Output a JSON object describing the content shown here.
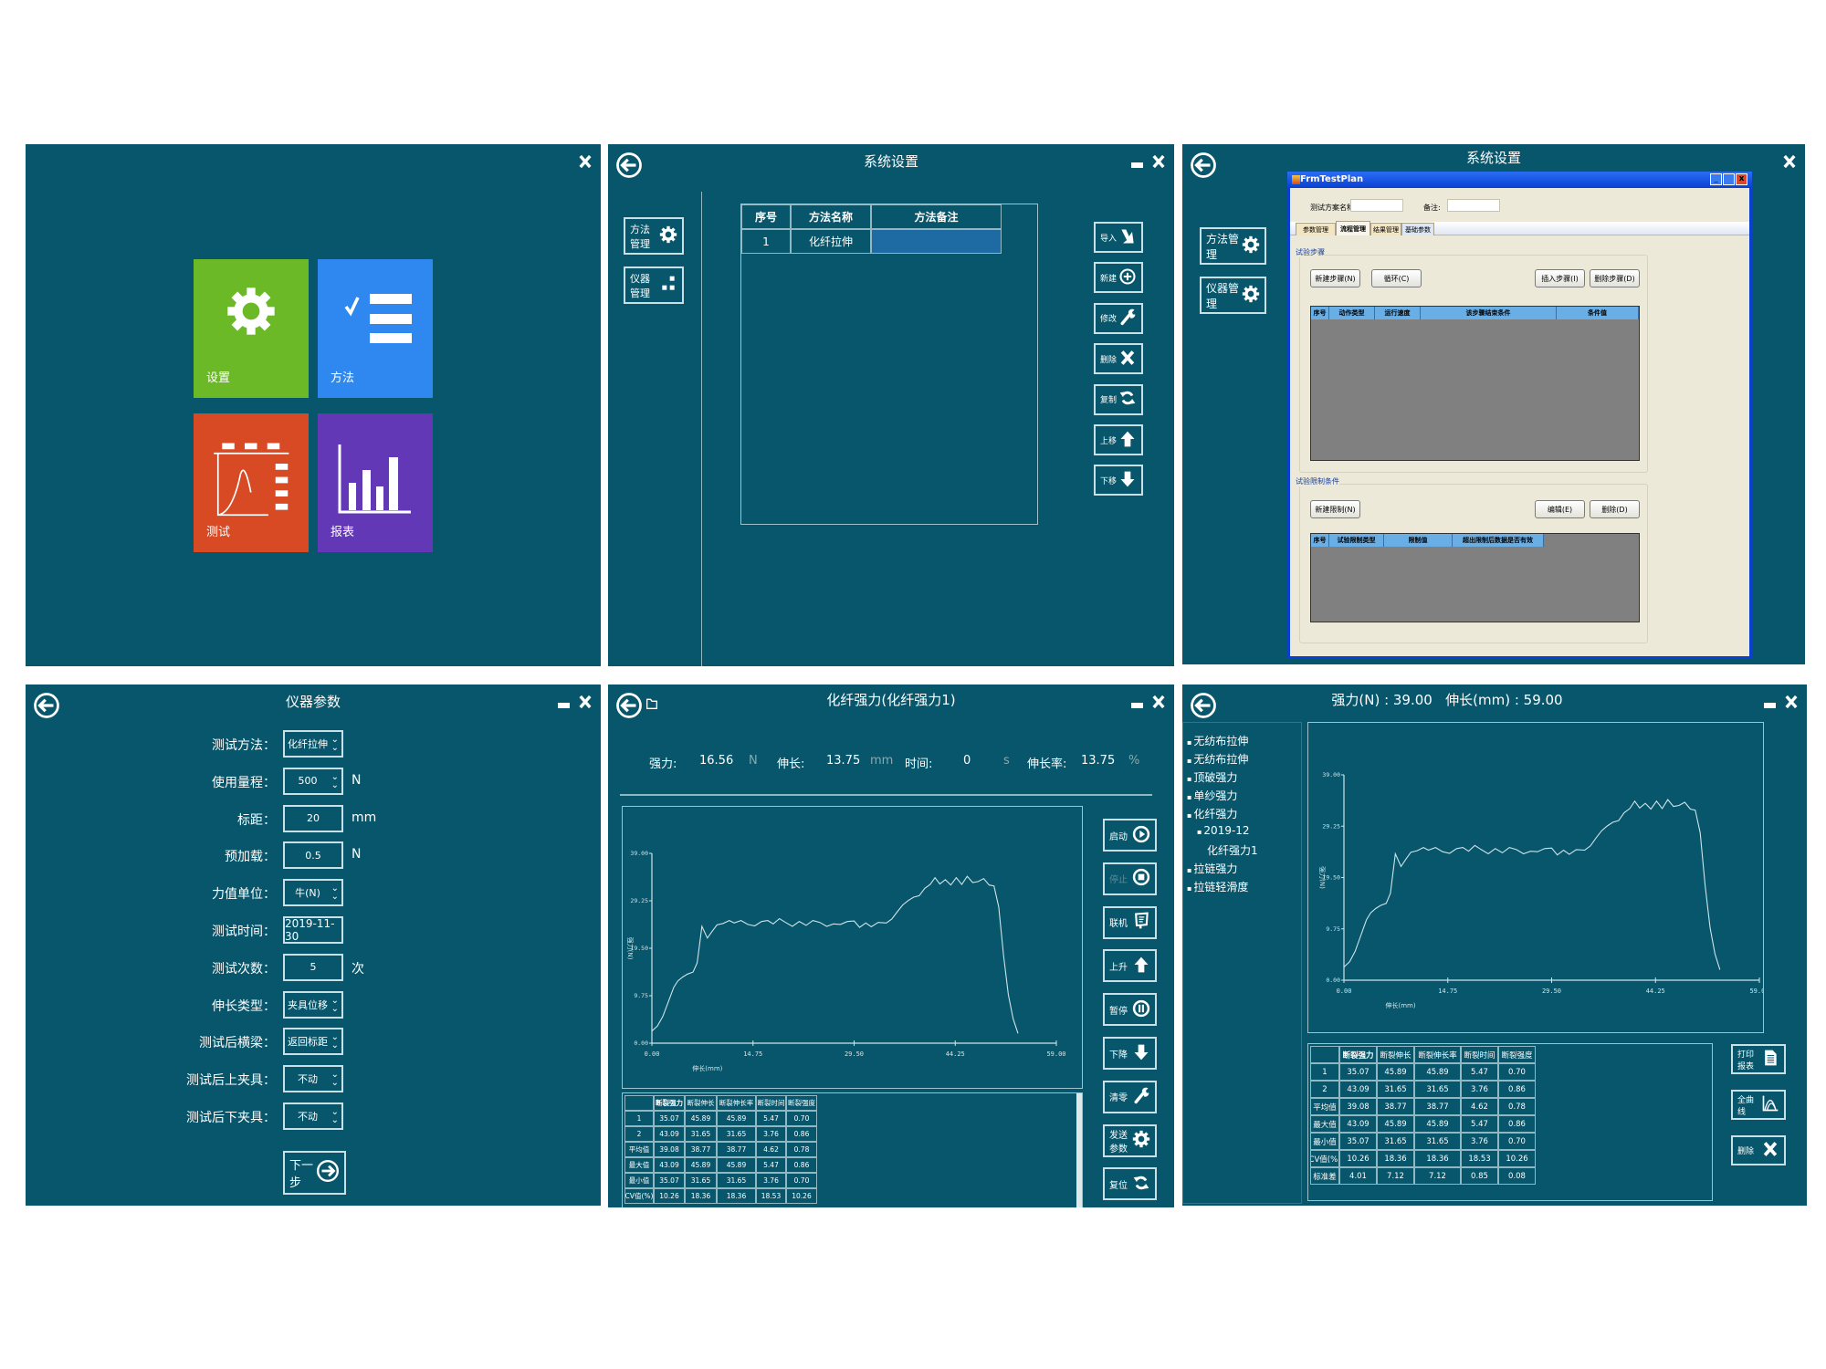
{
  "colors": {
    "panel_bg": "#07566b",
    "tile_settings": "#6cb928",
    "tile_method": "#2e88ef",
    "tile_test": "#d74a24",
    "tile_report": "#6238b6",
    "selection": "#1e6aa3",
    "dialog_title": "#0a3fd0",
    "dialog_bg": "#ece9d8",
    "grid_body": "#808080",
    "grid_header": "#6aaee6",
    "curve": "#cfe4ea"
  },
  "home": {
    "tiles": [
      {
        "label": "设置",
        "icon": "gear-icon"
      },
      {
        "label": "方法",
        "icon": "checklist-icon"
      },
      {
        "label": "测试",
        "icon": "test-curve-icon"
      },
      {
        "label": "报表",
        "icon": "bar-chart-icon"
      }
    ]
  },
  "method_settings": {
    "title": "系统设置",
    "side_buttons": [
      {
        "label": "方法管理",
        "icon": "gear-icon"
      },
      {
        "label": "仪器管理",
        "icon": "blocks-icon"
      }
    ],
    "table": {
      "headers": [
        "序号",
        "方法名称",
        "方法备注"
      ],
      "rows": [
        [
          "1",
          "化纤拉伸",
          ""
        ]
      ]
    },
    "actions": [
      {
        "label": "导入",
        "icon": "import-icon"
      },
      {
        "label": "新建",
        "icon": "plus-circle-icon"
      },
      {
        "label": "修改",
        "icon": "wrench-icon"
      },
      {
        "label": "删除",
        "icon": "x-icon"
      },
      {
        "label": "复制",
        "icon": "refresh-icon"
      },
      {
        "label": "上移",
        "icon": "arrow-up-icon"
      },
      {
        "label": "下移",
        "icon": "arrow-down-icon"
      }
    ]
  },
  "test_plan": {
    "title": "系统设置",
    "side_buttons": [
      {
        "label": "方法管理",
        "icon": "gear-icon"
      },
      {
        "label": "仪器管理",
        "icon": "gear-icon"
      }
    ],
    "dialog": {
      "title": "FrmTestPlan",
      "name_label": "测试方案名称:",
      "name_value": "",
      "remark_label": "备注:",
      "remark_value": "",
      "tabs": [
        "参数管理",
        "流程管理",
        "结果管理",
        "基础参数"
      ],
      "active_tab": "流程管理",
      "steps_group": "试验步骤",
      "steps_buttons": [
        "新建步骤(N)",
        "循环(C)",
        "插入步骤(I)",
        "删除步骤(D)"
      ],
      "steps_headers": [
        "序号",
        "动作类型",
        "运行速度",
        "该步骤结束条件",
        "条件值"
      ],
      "limits_group": "试验限制条件",
      "limits_buttons": [
        "新建限制(N)",
        "编辑(E)",
        "删除(D)"
      ],
      "limits_headers": [
        "序号",
        "试验限制类型",
        "限制值",
        "超出限制后数据是否有效"
      ]
    }
  },
  "instrument_params": {
    "title": "仪器参数",
    "fields": [
      {
        "label": "测试方法：",
        "value": "化纤拉伸",
        "dropdown": true,
        "unit": ""
      },
      {
        "label": "使用量程：",
        "value": "500",
        "dropdown": true,
        "unit": "N"
      },
      {
        "label": "标距：",
        "value": "20",
        "dropdown": false,
        "unit": "mm"
      },
      {
        "label": "预加载：",
        "value": "0.5",
        "dropdown": false,
        "unit": "N"
      },
      {
        "label": "力值单位：",
        "value": "牛(N)",
        "dropdown": true,
        "unit": ""
      },
      {
        "label": "测试时间：",
        "value": "2019-11-30",
        "dropdown": false,
        "unit": ""
      },
      {
        "label": "测试次数：",
        "value": "5",
        "dropdown": false,
        "unit": "次"
      },
      {
        "label": "伸长类型：",
        "value": "夹具位移",
        "dropdown": true,
        "unit": ""
      },
      {
        "label": "测试后横梁：",
        "value": "返回标距",
        "dropdown": true,
        "unit": ""
      },
      {
        "label": "测试后上夹具：",
        "value": "不动",
        "dropdown": true,
        "unit": ""
      },
      {
        "label": "测试后下夹具：",
        "value": "不动",
        "dropdown": true,
        "unit": ""
      }
    ],
    "next_label": "下一步"
  },
  "test_run": {
    "title": "化纤强力(化纤强力1)",
    "readouts": [
      {
        "label": "强力:",
        "value": "16.56",
        "unit": "N"
      },
      {
        "label": "伸长:",
        "value": "13.75",
        "unit": "mm"
      },
      {
        "label": "时间:",
        "value": "0",
        "unit": "s"
      },
      {
        "label": "伸长率:",
        "value": "13.75",
        "unit": "%"
      }
    ],
    "actions": [
      {
        "label": "启动",
        "icon": "play-circle-icon",
        "enabled": true
      },
      {
        "label": "停止",
        "icon": "stop-circle-icon",
        "enabled": false
      },
      {
        "label": "联机",
        "icon": "monitor-icon",
        "enabled": true
      },
      {
        "label": "上升",
        "icon": "arrow-up-icon",
        "enabled": true
      },
      {
        "label": "暂停",
        "icon": "pause-circle-icon",
        "enabled": true
      },
      {
        "label": "下降",
        "icon": "arrow-down-icon",
        "enabled": true
      },
      {
        "label": "清零",
        "icon": "wrench-icon",
        "enabled": true
      },
      {
        "label": "发送参数",
        "icon": "gear-icon",
        "enabled": true
      },
      {
        "label": "复位",
        "icon": "refresh-icon",
        "enabled": true
      }
    ],
    "table": {
      "headers": [
        "",
        "断裂强力",
        "断裂伸长",
        "断裂伸长率",
        "断裂时间",
        "断裂强度"
      ],
      "rows": [
        [
          "1",
          "35.07",
          "45.89",
          "45.89",
          "5.47",
          "0.70"
        ],
        [
          "2",
          "43.09",
          "31.65",
          "31.65",
          "3.76",
          "0.86"
        ],
        [
          "平均值",
          "39.08",
          "38.77",
          "38.77",
          "4.62",
          "0.78"
        ],
        [
          "最大值",
          "43.09",
          "45.89",
          "45.89",
          "5.47",
          "0.86"
        ],
        [
          "最小值",
          "35.07",
          "31.65",
          "31.65",
          "3.76",
          "0.70"
        ],
        [
          "CV值(%)",
          "10.26",
          "18.36",
          "18.36",
          "18.53",
          "10.26"
        ]
      ]
    }
  },
  "report": {
    "title": "强力(N) : 39.00   伸长(mm) : 59.00",
    "tree": [
      {
        "label": "无纺布拉伸",
        "level": 0,
        "bullet": true
      },
      {
        "label": "无纺布拉伸",
        "level": 0,
        "bullet": true
      },
      {
        "label": "顶破强力",
        "level": 0,
        "bullet": true
      },
      {
        "label": "单纱强力",
        "level": 0,
        "bullet": true
      },
      {
        "label": "化纤强力",
        "level": 0,
        "bullet": true
      },
      {
        "label": "2019-12",
        "level": 1,
        "bullet": true
      },
      {
        "label": "化纤强力1",
        "level": 2,
        "bullet": false
      },
      {
        "label": "拉链强力",
        "level": 0,
        "bullet": true
      },
      {
        "label": "拉链轻滑度",
        "level": 0,
        "bullet": true
      }
    ],
    "actions": [
      {
        "label": "打印报表",
        "icon": "document-icon"
      },
      {
        "label": "全曲线",
        "icon": "curves-icon"
      },
      {
        "label": "删除",
        "icon": "x-icon"
      }
    ],
    "table": {
      "headers": [
        "",
        "断裂强力",
        "断裂伸长",
        "断裂伸长率",
        "断裂时间",
        "断裂强度"
      ],
      "rows": [
        [
          "1",
          "35.07",
          "45.89",
          "45.89",
          "5.47",
          "0.70"
        ],
        [
          "2",
          "43.09",
          "31.65",
          "31.65",
          "3.76",
          "0.86"
        ],
        [
          "平均值",
          "39.08",
          "38.77",
          "38.77",
          "4.62",
          "0.78"
        ],
        [
          "最大值",
          "43.09",
          "45.89",
          "45.89",
          "5.47",
          "0.86"
        ],
        [
          "最小值",
          "35.07",
          "31.65",
          "31.65",
          "3.76",
          "0.70"
        ],
        [
          "CV值(%)",
          "10.26",
          "18.36",
          "18.36",
          "18.53",
          "10.26"
        ],
        [
          "标准差",
          "4.01",
          "7.12",
          "7.12",
          "0.85",
          "0.08"
        ]
      ]
    }
  },
  "chart_data": [
    {
      "type": "line",
      "xlabel": "伸长(mm)",
      "ylabel": "强力(N)",
      "xlim": [
        0,
        59
      ],
      "ylim": [
        0,
        39
      ],
      "xticks": [
        "0.00",
        "14.75",
        "29.50",
        "44.25",
        "59.00"
      ],
      "yticks": [
        "0.00",
        "9.75",
        "19.50",
        "29.25",
        "39.00"
      ],
      "grid": false,
      "x": [
        0,
        0.8,
        1.6,
        2.4,
        3.2,
        3.8,
        4.5,
        5.2,
        6.0,
        6.6,
        7.3,
        8.1,
        8.8,
        9.5,
        10.4,
        11.3,
        12.0,
        13.0,
        14.0,
        15.0,
        16.0,
        16.9,
        17.7,
        18.6,
        19.5,
        20.5,
        21.5,
        22.5,
        23.5,
        24.5,
        25.5,
        26.5,
        27.5,
        28.5,
        29.5,
        30.3,
        31.2,
        32.0,
        33.0,
        34.2,
        35.0,
        35.8,
        36.6,
        37.4,
        38.2,
        39.0,
        39.8,
        40.6,
        41.3,
        42.0,
        42.8,
        43.6,
        44.4,
        45.2,
        46.0,
        46.8,
        47.6,
        48.4,
        49.2,
        49.9,
        50.6,
        51.3,
        52.0,
        52.7,
        53.4
      ],
      "y": [
        2.5,
        3.5,
        5.5,
        8.5,
        11.5,
        12.8,
        13.6,
        14.2,
        14.6,
        16.5,
        24.0,
        21.6,
        23.0,
        24.3,
        24.6,
        25.2,
        24.7,
        25.2,
        24.4,
        24.1,
        25.0,
        25.2,
        24.5,
        25.6,
        24.8,
        24.0,
        25.0,
        24.2,
        25.2,
        24.8,
        24.0,
        24.5,
        24.4,
        25.0,
        25.1,
        23.8,
        24.7,
        23.9,
        24.8,
        24.7,
        25.5,
        27.0,
        28.4,
        29.3,
        30.0,
        30.3,
        31.8,
        32.6,
        34.0,
        32.7,
        33.6,
        32.5,
        34.0,
        32.6,
        34.3,
        33.0,
        33.2,
        33.8,
        32.5,
        32.3,
        28.0,
        18.0,
        10.0,
        5.0,
        2.0
      ]
    },
    {
      "type": "line",
      "xlabel": "伸长(mm)",
      "ylabel": "强力(N)",
      "xlim": [
        0,
        59
      ],
      "ylim": [
        0,
        39
      ],
      "xticks": [
        "0.00",
        "14.75",
        "29.50",
        "44.25",
        "59.00"
      ],
      "yticks": [
        "0.00",
        "9.75",
        "19.50",
        "29.25",
        "39.00"
      ],
      "grid": false,
      "x": [
        0,
        0.8,
        1.6,
        2.4,
        3.2,
        3.8,
        4.5,
        5.2,
        6.0,
        6.6,
        7.3,
        8.1,
        8.8,
        9.5,
        10.4,
        11.3,
        12.0,
        13.0,
        14.0,
        15.0,
        16.0,
        16.9,
        17.7,
        18.6,
        19.5,
        20.5,
        21.5,
        22.5,
        23.5,
        24.5,
        25.5,
        26.5,
        27.5,
        28.5,
        29.5,
        30.3,
        31.2,
        32.0,
        33.0,
        34.2,
        35.0,
        35.8,
        36.6,
        37.4,
        38.2,
        39.0,
        39.8,
        40.6,
        41.3,
        42.0,
        42.8,
        43.6,
        44.4,
        45.2,
        46.0,
        46.8,
        47.6,
        48.4,
        49.2,
        49.9,
        50.6,
        51.3,
        52.0,
        52.7,
        53.4
      ],
      "y": [
        2.5,
        3.5,
        5.5,
        8.5,
        11.5,
        12.8,
        13.6,
        14.2,
        14.6,
        16.5,
        24.0,
        21.6,
        23.0,
        24.3,
        24.6,
        25.2,
        24.7,
        25.2,
        24.4,
        24.1,
        25.0,
        25.2,
        24.5,
        25.6,
        24.8,
        24.0,
        25.0,
        24.2,
        25.2,
        24.8,
        24.0,
        24.5,
        24.4,
        25.0,
        25.1,
        23.8,
        24.7,
        23.9,
        24.8,
        24.7,
        25.5,
        27.0,
        28.4,
        29.3,
        30.0,
        30.3,
        31.8,
        32.6,
        34.0,
        32.7,
        33.6,
        32.5,
        34.0,
        32.6,
        34.3,
        33.0,
        33.2,
        33.8,
        32.5,
        32.3,
        28.0,
        18.0,
        10.0,
        5.0,
        2.0
      ]
    }
  ]
}
